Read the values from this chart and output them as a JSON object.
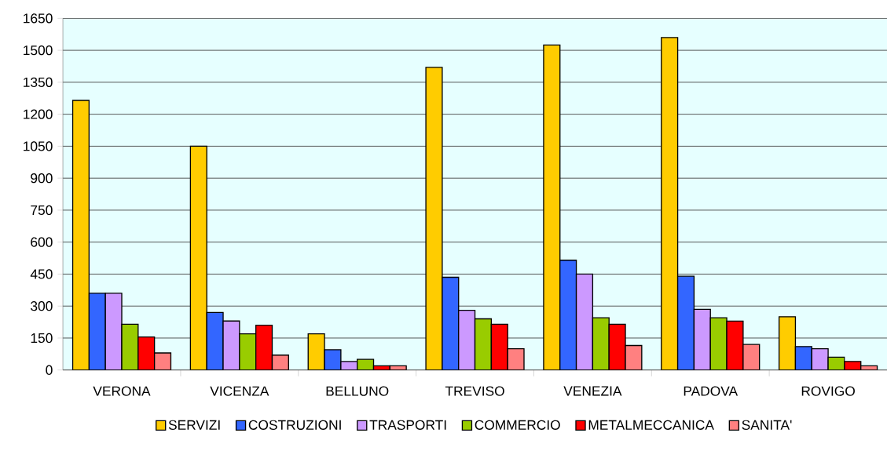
{
  "chart_data": {
    "type": "bar",
    "categories": [
      "VERONA",
      "VICENZA",
      "BELLUNO",
      "TREVISO",
      "VENEZIA",
      "PADOVA",
      "ROVIGO"
    ],
    "series": [
      {
        "name": "SERVIZI",
        "color": "#ffcc00",
        "values": [
          1265,
          1050,
          170,
          1420,
          1525,
          1560,
          250
        ]
      },
      {
        "name": "COSTRUZIONI",
        "color": "#3366ff",
        "values": [
          360,
          270,
          95,
          435,
          515,
          440,
          110
        ]
      },
      {
        "name": "TRASPORTI",
        "color": "#cc99ff",
        "values": [
          360,
          230,
          40,
          280,
          450,
          285,
          100
        ]
      },
      {
        "name": "COMMERCIO",
        "color": "#99cc00",
        "values": [
          215,
          170,
          50,
          240,
          245,
          245,
          60
        ]
      },
      {
        "name": "METALMECCANICA",
        "color": "#ff0000",
        "values": [
          155,
          210,
          20,
          215,
          215,
          230,
          40
        ]
      },
      {
        "name": "SANITA'",
        "color": "#ff8080",
        "values": [
          80,
          70,
          20,
          100,
          115,
          120,
          20
        ]
      }
    ],
    "ylim": [
      0,
      1650
    ],
    "yticks": [
      0,
      150,
      300,
      450,
      600,
      750,
      900,
      1050,
      1200,
      1350,
      1500,
      1650
    ],
    "grid": "y",
    "legend": "bottom"
  }
}
